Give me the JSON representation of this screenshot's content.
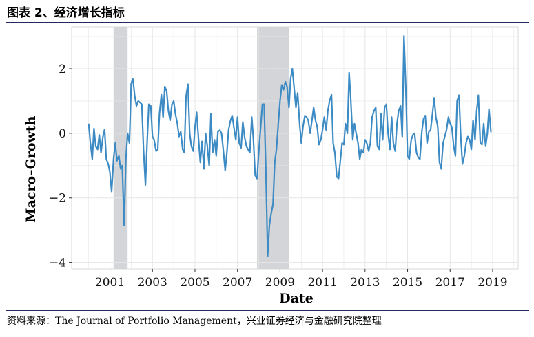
{
  "header": {
    "title": "图表 2、经济增长指标"
  },
  "footer": {
    "source": "资料来源：The Journal of Portfolio Management，兴业证券经济与金融研究院整理"
  },
  "colors": {
    "line": "#3d8bc4",
    "recession": "#d3d5d8",
    "grid": "#e6e6e6",
    "rule": "#1f2a5e"
  },
  "chart_data": {
    "type": "line",
    "title": "",
    "xlabel": "Date",
    "ylabel": "Macro–Growth",
    "xlim": [
      1999.2,
      2020.2
    ],
    "ylim": [
      -4.2,
      3.3
    ],
    "x_ticks": [
      2001,
      2003,
      2005,
      2007,
      2009,
      2011,
      2013,
      2015,
      2017,
      2019
    ],
    "y_ticks": [
      -4,
      -2,
      0,
      2
    ],
    "x_tick_labels": [
      "2001",
      "2003",
      "2005",
      "2007",
      "2009",
      "2011",
      "2013",
      "2015",
      "2017",
      "2019"
    ],
    "y_tick_labels": [
      "−4",
      "−2",
      "0",
      "2"
    ],
    "shaded_periods": [
      {
        "name": "2001 recession",
        "start": 2001.17,
        "end": 2001.83
      },
      {
        "name": "2008 recession",
        "start": 2007.92,
        "end": 2009.42
      }
    ],
    "series": [
      {
        "name": "Macro-Growth",
        "points": [
          [
            2000.0,
            0.28
          ],
          [
            2000.08,
            -0.3
          ],
          [
            2000.17,
            -0.8
          ],
          [
            2000.25,
            0.15
          ],
          [
            2000.33,
            -0.4
          ],
          [
            2000.42,
            -0.5
          ],
          [
            2000.5,
            -0.05
          ],
          [
            2000.58,
            -0.6
          ],
          [
            2000.67,
            -0.1
          ],
          [
            2000.75,
            0.12
          ],
          [
            2000.83,
            -0.8
          ],
          [
            2000.92,
            -0.95
          ],
          [
            2001.0,
            -1.2
          ],
          [
            2001.08,
            -1.8
          ],
          [
            2001.17,
            -0.8
          ],
          [
            2001.25,
            -0.3
          ],
          [
            2001.33,
            -0.85
          ],
          [
            2001.42,
            -0.7
          ],
          [
            2001.5,
            -1.1
          ],
          [
            2001.58,
            -1.0
          ],
          [
            2001.67,
            -2.85
          ],
          [
            2001.75,
            -0.8
          ],
          [
            2001.83,
            0.0
          ],
          [
            2001.92,
            -0.3
          ],
          [
            2002.0,
            1.55
          ],
          [
            2002.08,
            1.68
          ],
          [
            2002.17,
            1.15
          ],
          [
            2002.25,
            0.85
          ],
          [
            2002.33,
            1.0
          ],
          [
            2002.42,
            0.95
          ],
          [
            2002.5,
            0.9
          ],
          [
            2002.58,
            -0.5
          ],
          [
            2002.67,
            -1.6
          ],
          [
            2002.75,
            -0.3
          ],
          [
            2002.83,
            0.9
          ],
          [
            2002.92,
            0.85
          ],
          [
            2003.0,
            -0.1
          ],
          [
            2003.08,
            -0.2
          ],
          [
            2003.17,
            -0.55
          ],
          [
            2003.25,
            -0.5
          ],
          [
            2003.33,
            0.6
          ],
          [
            2003.42,
            1.2
          ],
          [
            2003.5,
            0.5
          ],
          [
            2003.58,
            1.45
          ],
          [
            2003.67,
            1.3
          ],
          [
            2003.75,
            0.7
          ],
          [
            2003.83,
            0.4
          ],
          [
            2003.92,
            0.9
          ],
          [
            2004.0,
            1.0
          ],
          [
            2004.08,
            0.6
          ],
          [
            2004.17,
            0.3
          ],
          [
            2004.25,
            -0.1
          ],
          [
            2004.33,
            0.05
          ],
          [
            2004.42,
            -0.5
          ],
          [
            2004.5,
            -0.6
          ],
          [
            2004.58,
            1.15
          ],
          [
            2004.67,
            1.52
          ],
          [
            2004.75,
            0.0
          ],
          [
            2004.83,
            -0.4
          ],
          [
            2004.92,
            -0.55
          ],
          [
            2005.0,
            0.2
          ],
          [
            2005.08,
            0.65
          ],
          [
            2005.17,
            -0.2
          ],
          [
            2005.25,
            -0.9
          ],
          [
            2005.33,
            -0.25
          ],
          [
            2005.42,
            -1.1
          ],
          [
            2005.5,
            0.0
          ],
          [
            2005.58,
            -0.4
          ],
          [
            2005.67,
            -1.0
          ],
          [
            2005.75,
            0.6
          ],
          [
            2005.83,
            -0.6
          ],
          [
            2005.92,
            -0.2
          ],
          [
            2006.0,
            -0.7
          ],
          [
            2006.08,
            0.05
          ],
          [
            2006.17,
            0.1
          ],
          [
            2006.25,
            0.0
          ],
          [
            2006.33,
            -0.5
          ],
          [
            2006.42,
            -1.15
          ],
          [
            2006.5,
            -0.6
          ],
          [
            2006.58,
            0.1
          ],
          [
            2006.67,
            0.4
          ],
          [
            2006.75,
            0.55
          ],
          [
            2006.83,
            0.2
          ],
          [
            2006.92,
            -0.2
          ],
          [
            2007.0,
            0.5
          ],
          [
            2007.08,
            -0.3
          ],
          [
            2007.17,
            -0.45
          ],
          [
            2007.25,
            0.35
          ],
          [
            2007.33,
            -0.1
          ],
          [
            2007.42,
            -0.4
          ],
          [
            2007.5,
            -0.5
          ],
          [
            2007.58,
            -0.6
          ],
          [
            2007.67,
            0.5
          ],
          [
            2007.75,
            -0.2
          ],
          [
            2007.83,
            -1.3
          ],
          [
            2007.92,
            -1.4
          ],
          [
            2008.0,
            -0.6
          ],
          [
            2008.08,
            0.1
          ],
          [
            2008.17,
            0.9
          ],
          [
            2008.25,
            0.9
          ],
          [
            2008.33,
            -1.0
          ],
          [
            2008.42,
            -3.8
          ],
          [
            2008.5,
            -2.85
          ],
          [
            2008.58,
            -2.5
          ],
          [
            2008.67,
            -2.2
          ],
          [
            2008.75,
            -0.9
          ],
          [
            2008.83,
            -0.5
          ],
          [
            2008.92,
            0.3
          ],
          [
            2009.0,
            1.0
          ],
          [
            2009.08,
            1.5
          ],
          [
            2009.17,
            1.35
          ],
          [
            2009.25,
            1.6
          ],
          [
            2009.33,
            1.45
          ],
          [
            2009.42,
            0.8
          ],
          [
            2009.5,
            1.7
          ],
          [
            2009.58,
            2.0
          ],
          [
            2009.67,
            1.35
          ],
          [
            2009.75,
            0.8
          ],
          [
            2009.83,
            1.25
          ],
          [
            2009.92,
            0.3
          ],
          [
            2010.0,
            -0.3
          ],
          [
            2010.08,
            0.2
          ],
          [
            2010.17,
            0.55
          ],
          [
            2010.25,
            0.5
          ],
          [
            2010.33,
            0.4
          ],
          [
            2010.42,
            0.0
          ],
          [
            2010.5,
            0.4
          ],
          [
            2010.58,
            0.8
          ],
          [
            2010.67,
            0.4
          ],
          [
            2010.75,
            0.2
          ],
          [
            2010.83,
            -0.35
          ],
          [
            2010.92,
            -0.2
          ],
          [
            2011.0,
            0.1
          ],
          [
            2011.08,
            0.5
          ],
          [
            2011.17,
            0.1
          ],
          [
            2011.25,
            0.7
          ],
          [
            2011.33,
            1.0
          ],
          [
            2011.42,
            1.2
          ],
          [
            2011.5,
            -0.3
          ],
          [
            2011.58,
            -0.6
          ],
          [
            2011.67,
            -1.35
          ],
          [
            2011.75,
            -1.4
          ],
          [
            2011.83,
            -0.9
          ],
          [
            2011.92,
            -0.3
          ],
          [
            2012.0,
            -0.35
          ],
          [
            2012.08,
            0.3
          ],
          [
            2012.17,
            0.0
          ],
          [
            2012.25,
            1.88
          ],
          [
            2012.33,
            1.0
          ],
          [
            2012.42,
            -0.2
          ],
          [
            2012.5,
            0.3
          ],
          [
            2012.58,
            0.0
          ],
          [
            2012.67,
            -0.3
          ],
          [
            2012.75,
            -0.8
          ],
          [
            2012.83,
            -0.5
          ],
          [
            2012.92,
            -0.6
          ],
          [
            2013.0,
            -0.2
          ],
          [
            2013.08,
            -0.3
          ],
          [
            2013.17,
            -0.55
          ],
          [
            2013.25,
            -0.3
          ],
          [
            2013.33,
            0.5
          ],
          [
            2013.42,
            0.7
          ],
          [
            2013.5,
            0.8
          ],
          [
            2013.58,
            -0.4
          ],
          [
            2013.67,
            -0.5
          ],
          [
            2013.75,
            0.6
          ],
          [
            2013.83,
            -0.2
          ],
          [
            2013.92,
            0.8
          ],
          [
            2014.0,
            0.9
          ],
          [
            2014.08,
            0.0
          ],
          [
            2014.17,
            -0.5
          ],
          [
            2014.25,
            0.5
          ],
          [
            2014.33,
            -0.3
          ],
          [
            2014.42,
            -0.55
          ],
          [
            2014.5,
            0.3
          ],
          [
            2014.58,
            0.7
          ],
          [
            2014.67,
            0.85
          ],
          [
            2014.75,
            -0.1
          ],
          [
            2014.83,
            3.02
          ],
          [
            2014.92,
            1.3
          ],
          [
            2015.0,
            -0.7
          ],
          [
            2015.08,
            -0.8
          ],
          [
            2015.17,
            -0.2
          ],
          [
            2015.25,
            -0.05
          ],
          [
            2015.33,
            0.0
          ],
          [
            2015.42,
            -0.6
          ],
          [
            2015.5,
            -0.75
          ],
          [
            2015.58,
            -0.8
          ],
          [
            2015.67,
            0.05
          ],
          [
            2015.75,
            0.45
          ],
          [
            2015.83,
            0.55
          ],
          [
            2015.92,
            -0.3
          ],
          [
            2016.0,
            0.05
          ],
          [
            2016.08,
            0.1
          ],
          [
            2016.17,
            0.6
          ],
          [
            2016.25,
            1.1
          ],
          [
            2016.33,
            0.5
          ],
          [
            2016.42,
            0.2
          ],
          [
            2016.5,
            -0.9
          ],
          [
            2016.58,
            -1.1
          ],
          [
            2016.67,
            -0.3
          ],
          [
            2016.75,
            -0.1
          ],
          [
            2016.83,
            0.1
          ],
          [
            2016.92,
            0.5
          ],
          [
            2017.0,
            0.3
          ],
          [
            2017.08,
            0.2
          ],
          [
            2017.17,
            -0.4
          ],
          [
            2017.25,
            -0.7
          ],
          [
            2017.33,
            1.0
          ],
          [
            2017.42,
            1.18
          ],
          [
            2017.5,
            -0.1
          ],
          [
            2017.58,
            -0.95
          ],
          [
            2017.67,
            -0.7
          ],
          [
            2017.75,
            -0.3
          ],
          [
            2017.83,
            -0.1
          ],
          [
            2017.92,
            -0.2
          ],
          [
            2018.0,
            -0.5
          ],
          [
            2018.08,
            0.4
          ],
          [
            2018.17,
            -0.2
          ],
          [
            2018.25,
            0.7
          ],
          [
            2018.33,
            1.18
          ],
          [
            2018.42,
            -0.3
          ],
          [
            2018.5,
            -0.35
          ],
          [
            2018.58,
            0.3
          ],
          [
            2018.67,
            -0.4
          ],
          [
            2018.75,
            0.0
          ],
          [
            2018.83,
            0.75
          ],
          [
            2018.92,
            0.05
          ]
        ]
      }
    ]
  }
}
